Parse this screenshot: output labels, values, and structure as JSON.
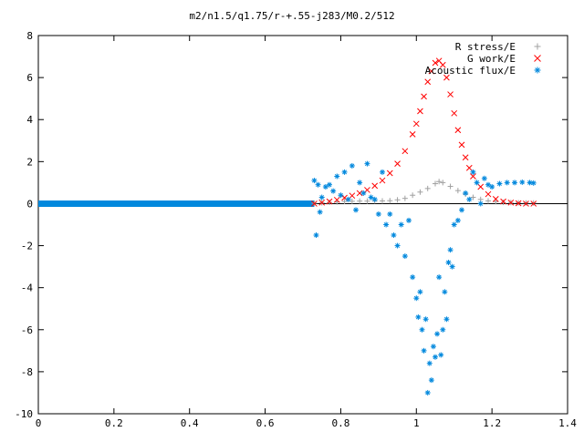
{
  "chart_data": {
    "type": "scatter",
    "title": "m2/n1.5/q1.75/r-+.55-j283/M0.2/512",
    "xlabel": "",
    "ylabel": "",
    "xlim": [
      0,
      1.4
    ],
    "ylim": [
      -10,
      8
    ],
    "xticks": [
      0,
      0.2,
      0.4,
      0.6,
      0.8,
      1,
      1.2,
      1.4
    ],
    "xtick_labels": [
      "0",
      "0.2",
      "0.4",
      "0.6",
      "0.8",
      "1",
      "1.2",
      "1.4"
    ],
    "yticks": [
      -10,
      -8,
      -6,
      -4,
      -2,
      0,
      2,
      4,
      6,
      8
    ],
    "ytick_labels": [
      "-10",
      "-8",
      "-6",
      "-4",
      "-2",
      "0",
      "2",
      "4",
      "6",
      "8"
    ],
    "grid": false,
    "legend_position": "top-right",
    "series": [
      {
        "name": "R stress/E",
        "marker": "+",
        "color": "#a0a0a0",
        "x": [
          0.73,
          0.75,
          0.77,
          0.79,
          0.81,
          0.83,
          0.85,
          0.87,
          0.89,
          0.91,
          0.93,
          0.95,
          0.97,
          0.99,
          1.01,
          1.03,
          1.05,
          1.06,
          1.07,
          1.09,
          1.11,
          1.13,
          1.15,
          1.17,
          1.19,
          1.21,
          1.23,
          1.25,
          1.27,
          1.29,
          1.31
        ],
        "y": [
          0.02,
          0.04,
          0.06,
          0.08,
          0.1,
          0.11,
          0.12,
          0.12,
          0.13,
          0.13,
          0.14,
          0.18,
          0.25,
          0.4,
          0.55,
          0.72,
          0.95,
          1.05,
          1.0,
          0.82,
          0.62,
          0.45,
          0.3,
          0.2,
          0.13,
          0.09,
          0.06,
          0.05,
          0.04,
          0.03,
          0.03
        ]
      },
      {
        "name": "G work/E",
        "marker": "x",
        "color": "#ff0000",
        "x": [
          0.73,
          0.75,
          0.77,
          0.79,
          0.81,
          0.83,
          0.85,
          0.87,
          0.89,
          0.91,
          0.93,
          0.95,
          0.97,
          0.99,
          1.0,
          1.01,
          1.02,
          1.03,
          1.04,
          1.05,
          1.06,
          1.07,
          1.08,
          1.09,
          1.1,
          1.11,
          1.12,
          1.13,
          1.14,
          1.15,
          1.17,
          1.19,
          1.21,
          1.23,
          1.25,
          1.27,
          1.29,
          1.31
        ],
        "y": [
          0.0,
          0.05,
          0.1,
          0.18,
          0.28,
          0.38,
          0.5,
          0.65,
          0.85,
          1.1,
          1.45,
          1.9,
          2.5,
          3.3,
          3.8,
          4.4,
          5.1,
          5.8,
          6.3,
          6.7,
          6.8,
          6.6,
          6.0,
          5.2,
          4.3,
          3.5,
          2.8,
          2.2,
          1.7,
          1.3,
          0.8,
          0.45,
          0.22,
          0.1,
          0.05,
          0.02,
          0.0,
          0.0
        ]
      },
      {
        "name": "Acoustic flux/E",
        "marker": "*",
        "color": "#0088dd",
        "x": [
          0.73,
          0.735,
          0.74,
          0.745,
          0.75,
          0.76,
          0.77,
          0.78,
          0.79,
          0.8,
          0.81,
          0.82,
          0.83,
          0.84,
          0.85,
          0.86,
          0.87,
          0.88,
          0.89,
          0.9,
          0.91,
          0.92,
          0.93,
          0.94,
          0.95,
          0.96,
          0.97,
          0.98,
          0.99,
          1.0,
          1.005,
          1.01,
          1.015,
          1.02,
          1.025,
          1.03,
          1.035,
          1.04,
          1.045,
          1.05,
          1.055,
          1.06,
          1.065,
          1.07,
          1.075,
          1.08,
          1.085,
          1.09,
          1.095,
          1.1,
          1.11,
          1.12,
          1.13,
          1.14,
          1.15,
          1.16,
          1.17,
          1.18,
          1.19,
          1.2,
          1.22,
          1.24,
          1.26,
          1.28,
          1.3,
          1.31
        ],
        "y": [
          1.1,
          -1.5,
          0.9,
          -0.4,
          0.3,
          0.8,
          0.9,
          0.6,
          1.3,
          0.4,
          1.5,
          0.2,
          1.8,
          -0.3,
          1.0,
          0.5,
          1.9,
          0.3,
          0.2,
          -0.5,
          1.5,
          -1.0,
          -0.5,
          -1.5,
          -2.0,
          -1.0,
          -2.5,
          -0.8,
          -3.5,
          -4.5,
          -5.4,
          -4.2,
          -6.0,
          -7.0,
          -5.5,
          -9.0,
          -7.6,
          -8.4,
          -6.8,
          -7.3,
          -6.2,
          -3.5,
          -7.2,
          -6.0,
          -4.2,
          -5.5,
          -2.8,
          -2.2,
          -3.0,
          -1.0,
          -0.8,
          -0.3,
          0.5,
          0.2,
          1.5,
          1.0,
          0.0,
          1.2,
          0.9,
          0.8,
          0.95,
          1.0,
          1.0,
          1.02,
          1.0,
          0.98
        ]
      }
    ]
  }
}
